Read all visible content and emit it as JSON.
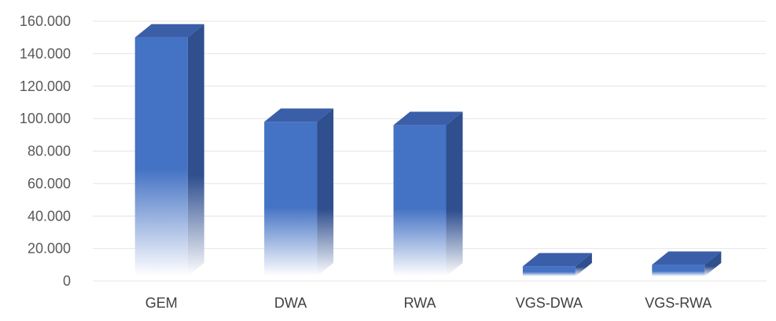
{
  "chart_data": {
    "type": "bar",
    "categories": [
      "GEM",
      "DWA",
      "RWA",
      "VGS-DWA",
      "VGS-RWA"
    ],
    "values": [
      150000,
      98000,
      96000,
      9000,
      10000
    ],
    "y_tick_labels": [
      "0",
      "20.000",
      "40.000",
      "60.000",
      "80.000",
      "100.000",
      "120.000",
      "140.000",
      "160.000"
    ],
    "ylim": [
      0,
      160000
    ],
    "y_step": 20000,
    "grid": true,
    "style": "3d-column",
    "colors": {
      "front": "#4472c4",
      "side": "#2f4f8f",
      "top": "#3a5ea8",
      "fade": "#ffffff"
    }
  }
}
